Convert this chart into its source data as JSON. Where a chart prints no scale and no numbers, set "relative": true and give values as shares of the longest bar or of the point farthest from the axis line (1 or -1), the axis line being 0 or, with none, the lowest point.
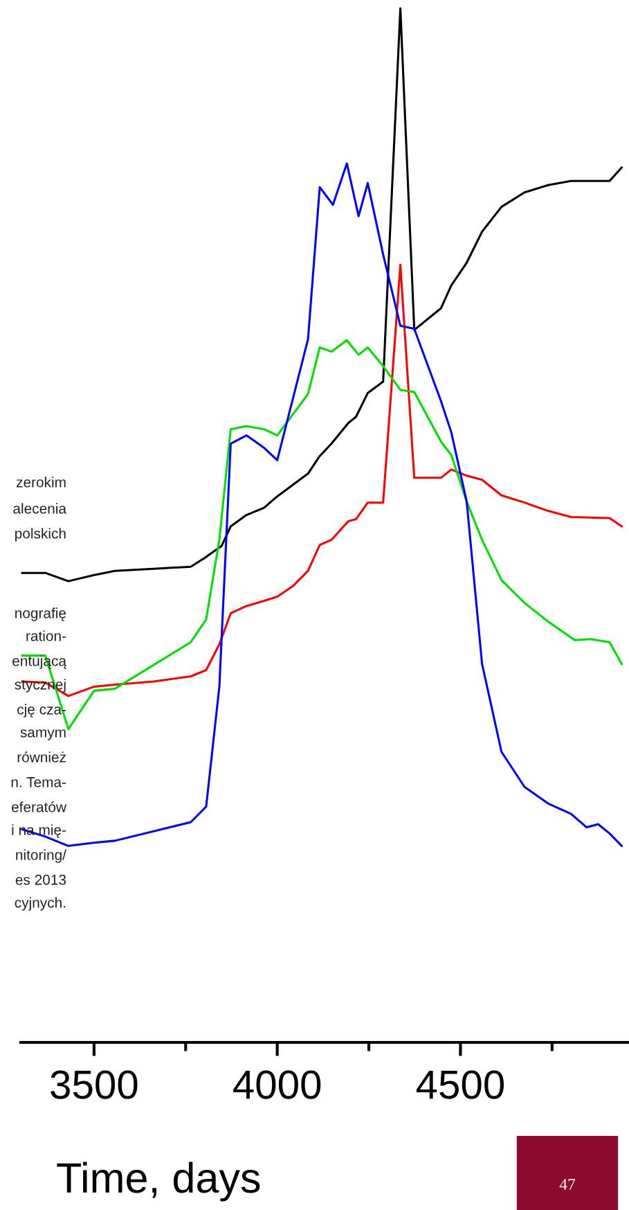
{
  "chart_data": {
    "type": "line",
    "relative": true,
    "xlabel": "Time, days",
    "xlim": [
      3300,
      4960
    ],
    "xticks": [
      3500,
      {
        "value": 3750,
        "label": null
      },
      4000,
      {
        "value": 4250,
        "label": null
      },
      4500,
      {
        "value": 4750,
        "label": null
      }
    ],
    "grid": false,
    "legend": false,
    "marker": "none",
    "line_style": "solid",
    "tick_labels": "x",
    "series": [
      {
        "color": "#000000",
        "x": [
          3304,
          3367,
          3430,
          3500,
          3557,
          3662,
          3764,
          3800,
          3848,
          3873,
          3916,
          3964,
          4000,
          4084,
          4116,
          4148,
          4194,
          4215,
          4247,
          4289,
          4336,
          4374,
          4447,
          4475,
          4517,
          4559,
          4612,
          4675,
          4739,
          4802,
          4907,
          4940
        ],
        "values": [
          0.454,
          0.454,
          0.446,
          0.452,
          0.456,
          0.458,
          0.46,
          0.468,
          0.48,
          0.499,
          0.51,
          0.517,
          0.528,
          0.55,
          0.567,
          0.579,
          0.599,
          0.605,
          0.628,
          0.639,
          1.0,
          0.689,
          0.71,
          0.732,
          0.754,
          0.784,
          0.808,
          0.822,
          0.829,
          0.833,
          0.833,
          0.846
        ]
      },
      {
        "color": "#ff0000",
        "x": [
          3304,
          3367,
          3430,
          3500,
          3557,
          3662,
          3764,
          3806,
          3842,
          3873,
          3916,
          3964,
          4000,
          4042,
          4084,
          4116,
          4148,
          4194,
          4215,
          4247,
          4289,
          4336,
          4374,
          4447,
          4475,
          4517,
          4559,
          4612,
          4675,
          4739,
          4802,
          4907,
          4940
        ],
        "values": [
          0.349,
          0.348,
          0.335,
          0.344,
          0.346,
          0.349,
          0.354,
          0.36,
          0.385,
          0.415,
          0.422,
          0.427,
          0.431,
          0.441,
          0.456,
          0.481,
          0.486,
          0.504,
          0.506,
          0.522,
          0.522,
          0.752,
          0.546,
          0.546,
          0.554,
          0.548,
          0.544,
          0.529,
          0.522,
          0.514,
          0.508,
          0.507,
          0.499
        ]
      },
      {
        "color": "#00e000",
        "x": [
          3304,
          3367,
          3430,
          3500,
          3557,
          3764,
          3806,
          3842,
          3873,
          3916,
          3964,
          4000,
          4084,
          4116,
          4148,
          4190,
          4222,
          4247,
          4289,
          4336,
          4374,
          4447,
          4475,
          4517,
          4559,
          4612,
          4675,
          4739,
          4812,
          4855,
          4907,
          4940
        ],
        "values": [
          0.374,
          0.374,
          0.303,
          0.34,
          0.342,
          0.387,
          0.409,
          0.486,
          0.593,
          0.596,
          0.593,
          0.587,
          0.627,
          0.672,
          0.668,
          0.679,
          0.665,
          0.672,
          0.654,
          0.631,
          0.629,
          0.581,
          0.568,
          0.523,
          0.486,
          0.447,
          0.425,
          0.407,
          0.389,
          0.39,
          0.387,
          0.366
        ]
      },
      {
        "color": "#0000ff",
        "x": [
          3304,
          3367,
          3430,
          3500,
          3557,
          3764,
          3806,
          3842,
          3873,
          3916,
          3964,
          4000,
          4084,
          4116,
          4152,
          4190,
          4222,
          4247,
          4289,
          4336,
          4374,
          4447,
          4475,
          4517,
          4559,
          4612,
          4675,
          4739,
          4802,
          4844,
          4876,
          4907,
          4940
        ],
        "values": [
          0.206,
          0.199,
          0.19,
          0.193,
          0.195,
          0.213,
          0.228,
          0.344,
          0.579,
          0.587,
          0.575,
          0.563,
          0.68,
          0.827,
          0.81,
          0.85,
          0.799,
          0.831,
          0.762,
          0.693,
          0.69,
          0.62,
          0.59,
          0.523,
          0.366,
          0.281,
          0.247,
          0.231,
          0.221,
          0.208,
          0.211,
          0.202,
          0.19
        ]
      }
    ],
    "annotations": [
      "zerokim",
      "alecenia",
      "polskich",
      "nografię",
      "ration-",
      "entującą",
      "stycznej",
      "cję cza-",
      "samym",
      "również",
      "n. Tema-",
      "eferatów",
      "i na mię-",
      "nitoring/",
      "es 2013",
      "cyjnych.",
      "47"
    ]
  }
}
